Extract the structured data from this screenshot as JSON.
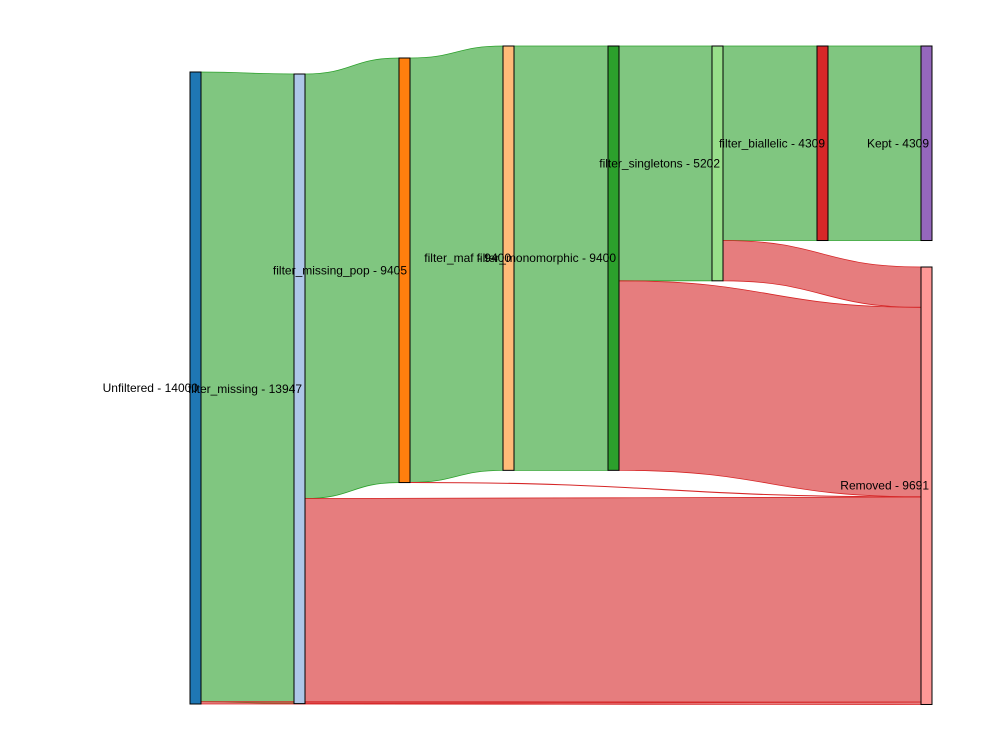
{
  "chart_data": {
    "type": "sankey",
    "nodes": [
      {
        "id": "unfiltered",
        "label": "Unfiltered - 14000",
        "color": "#1f77b4"
      },
      {
        "id": "filter_missing",
        "label": "filter_missing - 13947",
        "color": "#aec7e8"
      },
      {
        "id": "filter_missing_pop",
        "label": "filter_missing_pop - 9405",
        "color": "#ff7f0e"
      },
      {
        "id": "filter_maf",
        "label": "filter_maf - 9400",
        "color": "#ffbb78"
      },
      {
        "id": "filter_monomorphic",
        "label": "filter_monomorphic - 9400",
        "color": "#2ca02c"
      },
      {
        "id": "filter_singletons",
        "label": "filter_singletons - 5202",
        "color": "#98df8a"
      },
      {
        "id": "filter_biallelic",
        "label": "filter_biallelic - 4309",
        "color": "#d62728"
      },
      {
        "id": "kept",
        "label": "Kept - 4309",
        "color": "#9467bd"
      },
      {
        "id": "removed",
        "label": "Removed - 9691",
        "color": "#ff9896"
      }
    ],
    "links": [
      {
        "source": "unfiltered",
        "target": "filter_missing",
        "value": 13947,
        "kind": "kept"
      },
      {
        "source": "unfiltered",
        "target": "removed",
        "value": 53,
        "kind": "removed"
      },
      {
        "source": "filter_missing",
        "target": "filter_missing_pop",
        "value": 9405,
        "kind": "kept"
      },
      {
        "source": "filter_missing",
        "target": "removed",
        "value": 4542,
        "kind": "removed"
      },
      {
        "source": "filter_missing_pop",
        "target": "filter_maf",
        "value": 9400,
        "kind": "kept"
      },
      {
        "source": "filter_missing_pop",
        "target": "removed",
        "value": 5,
        "kind": "removed"
      },
      {
        "source": "filter_maf",
        "target": "filter_monomorphic",
        "value": 9400,
        "kind": "kept"
      },
      {
        "source": "filter_monomorphic",
        "target": "filter_singletons",
        "value": 5202,
        "kind": "kept"
      },
      {
        "source": "filter_monomorphic",
        "target": "removed",
        "value": 4198,
        "kind": "removed"
      },
      {
        "source": "filter_singletons",
        "target": "filter_biallelic",
        "value": 4309,
        "kind": "kept"
      },
      {
        "source": "filter_singletons",
        "target": "removed",
        "value": 893,
        "kind": "removed"
      },
      {
        "source": "filter_biallelic",
        "target": "kept",
        "value": 4309,
        "kind": "kept"
      }
    ],
    "link_colors": {
      "kept": "#2ca02c",
      "removed": "#d62728"
    },
    "legend": "none"
  }
}
